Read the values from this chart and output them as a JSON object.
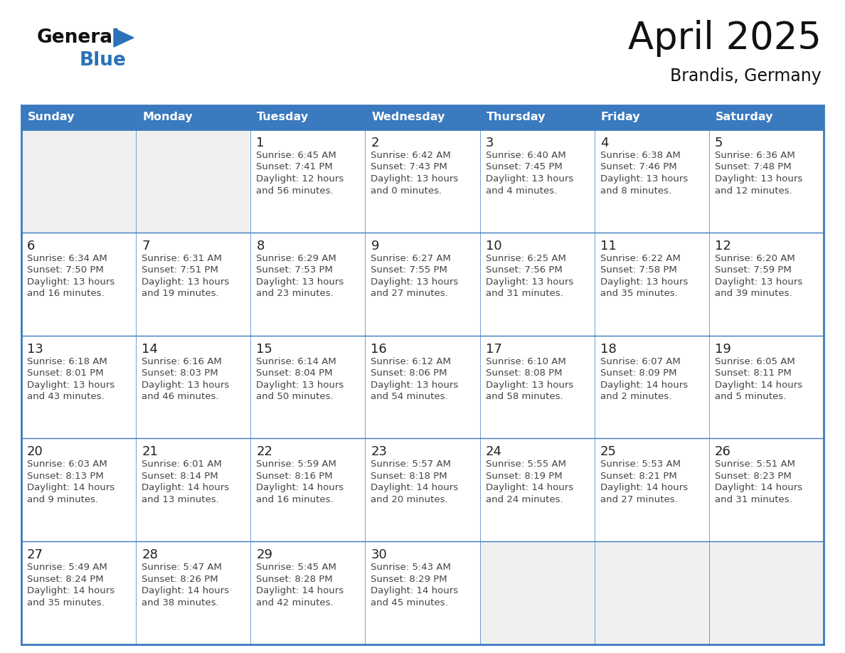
{
  "title": "April 2025",
  "subtitle": "Brandis, Germany",
  "header_color": "#3a7abf",
  "header_text_color": "#ffffff",
  "cell_bg_color": "#ffffff",
  "alt_cell_bg_color": "#f0f0f0",
  "day_number_color": "#222222",
  "cell_text_color": "#444444",
  "border_color": "#3a7abf",
  "days_of_week": [
    "Sunday",
    "Monday",
    "Tuesday",
    "Wednesday",
    "Thursday",
    "Friday",
    "Saturday"
  ],
  "weeks": [
    [
      {
        "day": "",
        "sunrise": "",
        "sunset": "",
        "daylight": ""
      },
      {
        "day": "",
        "sunrise": "",
        "sunset": "",
        "daylight": ""
      },
      {
        "day": "1",
        "sunrise": "6:45 AM",
        "sunset": "7:41 PM",
        "hours": "12 hours",
        "mins": "and 56 minutes."
      },
      {
        "day": "2",
        "sunrise": "6:42 AM",
        "sunset": "7:43 PM",
        "hours": "13 hours",
        "mins": "and 0 minutes."
      },
      {
        "day": "3",
        "sunrise": "6:40 AM",
        "sunset": "7:45 PM",
        "hours": "13 hours",
        "mins": "and 4 minutes."
      },
      {
        "day": "4",
        "sunrise": "6:38 AM",
        "sunset": "7:46 PM",
        "hours": "13 hours",
        "mins": "and 8 minutes."
      },
      {
        "day": "5",
        "sunrise": "6:36 AM",
        "sunset": "7:48 PM",
        "hours": "13 hours",
        "mins": "and 12 minutes."
      }
    ],
    [
      {
        "day": "6",
        "sunrise": "6:34 AM",
        "sunset": "7:50 PM",
        "hours": "13 hours",
        "mins": "and 16 minutes."
      },
      {
        "day": "7",
        "sunrise": "6:31 AM",
        "sunset": "7:51 PM",
        "hours": "13 hours",
        "mins": "and 19 minutes."
      },
      {
        "day": "8",
        "sunrise": "6:29 AM",
        "sunset": "7:53 PM",
        "hours": "13 hours",
        "mins": "and 23 minutes."
      },
      {
        "day": "9",
        "sunrise": "6:27 AM",
        "sunset": "7:55 PM",
        "hours": "13 hours",
        "mins": "and 27 minutes."
      },
      {
        "day": "10",
        "sunrise": "6:25 AM",
        "sunset": "7:56 PM",
        "hours": "13 hours",
        "mins": "and 31 minutes."
      },
      {
        "day": "11",
        "sunrise": "6:22 AM",
        "sunset": "7:58 PM",
        "hours": "13 hours",
        "mins": "and 35 minutes."
      },
      {
        "day": "12",
        "sunrise": "6:20 AM",
        "sunset": "7:59 PM",
        "hours": "13 hours",
        "mins": "and 39 minutes."
      }
    ],
    [
      {
        "day": "13",
        "sunrise": "6:18 AM",
        "sunset": "8:01 PM",
        "hours": "13 hours",
        "mins": "and 43 minutes."
      },
      {
        "day": "14",
        "sunrise": "6:16 AM",
        "sunset": "8:03 PM",
        "hours": "13 hours",
        "mins": "and 46 minutes."
      },
      {
        "day": "15",
        "sunrise": "6:14 AM",
        "sunset": "8:04 PM",
        "hours": "13 hours",
        "mins": "and 50 minutes."
      },
      {
        "day": "16",
        "sunrise": "6:12 AM",
        "sunset": "8:06 PM",
        "hours": "13 hours",
        "mins": "and 54 minutes."
      },
      {
        "day": "17",
        "sunrise": "6:10 AM",
        "sunset": "8:08 PM",
        "hours": "13 hours",
        "mins": "and 58 minutes."
      },
      {
        "day": "18",
        "sunrise": "6:07 AM",
        "sunset": "8:09 PM",
        "hours": "14 hours",
        "mins": "and 2 minutes."
      },
      {
        "day": "19",
        "sunrise": "6:05 AM",
        "sunset": "8:11 PM",
        "hours": "14 hours",
        "mins": "and 5 minutes."
      }
    ],
    [
      {
        "day": "20",
        "sunrise": "6:03 AM",
        "sunset": "8:13 PM",
        "hours": "14 hours",
        "mins": "and 9 minutes."
      },
      {
        "day": "21",
        "sunrise": "6:01 AM",
        "sunset": "8:14 PM",
        "hours": "14 hours",
        "mins": "and 13 minutes."
      },
      {
        "day": "22",
        "sunrise": "5:59 AM",
        "sunset": "8:16 PM",
        "hours": "14 hours",
        "mins": "and 16 minutes."
      },
      {
        "day": "23",
        "sunrise": "5:57 AM",
        "sunset": "8:18 PM",
        "hours": "14 hours",
        "mins": "and 20 minutes."
      },
      {
        "day": "24",
        "sunrise": "5:55 AM",
        "sunset": "8:19 PM",
        "hours": "14 hours",
        "mins": "and 24 minutes."
      },
      {
        "day": "25",
        "sunrise": "5:53 AM",
        "sunset": "8:21 PM",
        "hours": "14 hours",
        "mins": "and 27 minutes."
      },
      {
        "day": "26",
        "sunrise": "5:51 AM",
        "sunset": "8:23 PM",
        "hours": "14 hours",
        "mins": "and 31 minutes."
      }
    ],
    [
      {
        "day": "27",
        "sunrise": "5:49 AM",
        "sunset": "8:24 PM",
        "hours": "14 hours",
        "mins": "and 35 minutes."
      },
      {
        "day": "28",
        "sunrise": "5:47 AM",
        "sunset": "8:26 PM",
        "hours": "14 hours",
        "mins": "and 38 minutes."
      },
      {
        "day": "29",
        "sunrise": "5:45 AM",
        "sunset": "8:28 PM",
        "hours": "14 hours",
        "mins": "and 42 minutes."
      },
      {
        "day": "30",
        "sunrise": "5:43 AM",
        "sunset": "8:29 PM",
        "hours": "14 hours",
        "mins": "and 45 minutes."
      },
      {
        "day": "",
        "sunrise": "",
        "sunset": "",
        "hours": "",
        "mins": ""
      },
      {
        "day": "",
        "sunrise": "",
        "sunset": "",
        "hours": "",
        "mins": ""
      },
      {
        "day": "",
        "sunrise": "",
        "sunset": "",
        "hours": "",
        "mins": ""
      }
    ]
  ],
  "logo_general_color": "#111111",
  "logo_blue_color": "#2a72b8",
  "logo_triangle_color": "#2a72b8",
  "fig_width": 11.88,
  "fig_height": 9.18,
  "dpi": 100
}
